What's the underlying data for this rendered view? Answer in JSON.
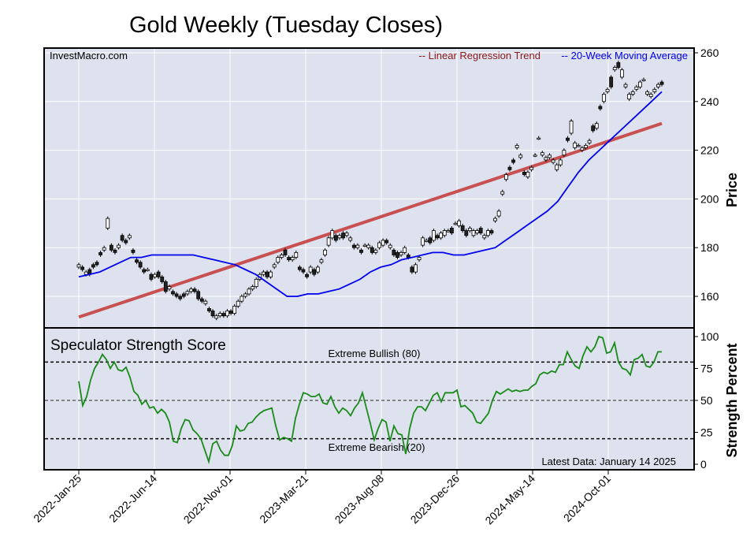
{
  "chart_data": [
    {
      "type": "candlestick",
      "title": "Gold Weekly (Tuesday Closes)",
      "source": "InvestMacro.com",
      "ylabel": "Price",
      "ylim": [
        146,
        262
      ],
      "yticks": [
        160,
        180,
        200,
        220,
        240,
        260
      ],
      "legend": [
        {
          "label": "-- Linear Regression Trend",
          "color": "#8b1a1a"
        },
        {
          "label": "-- 20-Week Moving Average",
          "color": "#0000ee"
        }
      ],
      "legend_placement": "top-right",
      "grid": true,
      "x_dates": [
        "2022-Jan-25",
        "2022-Jun-14",
        "2022-Nov-01",
        "2023-Mar-21",
        "2023-Aug-08",
        "2023-Dec-26",
        "2024-May-14",
        "2024-Oct-01"
      ],
      "candles": [
        [
          172,
          173
        ],
        [
          172,
          171
        ],
        [
          169,
          170
        ],
        [
          171,
          169
        ],
        [
          173,
          172
        ],
        [
          174,
          173
        ],
        [
          178,
          177
        ],
        [
          179,
          180
        ],
        [
          188,
          192
        ],
        [
          181,
          179
        ],
        [
          179,
          178
        ],
        [
          180,
          181
        ],
        [
          185,
          183
        ],
        [
          183,
          182
        ],
        [
          184,
          185
        ],
        [
          179,
          178
        ],
        [
          175,
          174
        ],
        [
          174,
          172
        ],
        [
          171,
          170
        ],
        [
          171,
          171
        ],
        [
          169,
          167
        ],
        [
          168,
          169
        ],
        [
          170,
          168
        ],
        [
          168,
          166
        ],
        [
          166,
          162
        ],
        [
          163,
          164
        ],
        [
          162,
          161
        ],
        [
          161,
          160
        ],
        [
          160,
          159
        ],
        [
          161,
          160
        ],
        [
          161,
          162
        ],
        [
          162,
          163
        ],
        [
          163,
          162
        ],
        [
          162,
          159
        ],
        [
          159,
          158
        ],
        [
          157,
          158
        ],
        [
          155,
          154
        ],
        [
          154,
          152
        ],
        [
          151,
          152
        ],
        [
          152,
          153
        ],
        [
          153,
          152
        ],
        [
          152,
          154
        ],
        [
          154,
          153
        ],
        [
          153,
          156
        ],
        [
          156,
          158
        ],
        [
          158,
          160
        ],
        [
          160,
          161
        ],
        [
          161,
          163
        ],
        [
          163,
          164
        ],
        [
          164,
          167
        ],
        [
          167,
          169
        ],
        [
          169,
          170
        ],
        [
          170,
          168
        ],
        [
          168,
          170
        ],
        [
          172,
          173
        ],
        [
          174,
          176
        ],
        [
          176,
          177
        ],
        [
          179,
          177
        ],
        [
          176,
          175
        ],
        [
          175,
          176
        ],
        [
          176,
          178
        ],
        [
          172,
          171
        ],
        [
          171,
          170
        ],
        [
          169,
          168
        ],
        [
          170,
          172
        ],
        [
          171,
          169
        ],
        [
          170,
          172
        ],
        [
          174,
          175
        ],
        [
          177,
          179
        ],
        [
          181,
          184
        ],
        [
          184,
          187
        ],
        [
          185,
          183
        ],
        [
          184,
          185
        ],
        [
          186,
          184
        ],
        [
          185,
          186
        ],
        [
          183,
          184
        ],
        [
          181,
          180
        ],
        [
          180,
          181
        ],
        [
          179,
          178
        ],
        [
          181,
          181
        ],
        [
          180,
          181
        ],
        [
          180,
          178
        ],
        [
          178,
          179
        ],
        [
          180,
          182
        ],
        [
          181,
          183
        ],
        [
          183,
          182
        ],
        [
          180,
          181
        ],
        [
          179,
          177
        ],
        [
          178,
          176
        ],
        [
          177,
          178
        ],
        [
          178,
          180
        ],
        [
          177,
          176
        ],
        [
          172,
          170
        ],
        [
          170,
          173
        ],
        [
          175,
          176
        ],
        [
          181,
          184
        ],
        [
          183,
          183
        ],
        [
          184,
          182
        ],
        [
          183,
          187
        ],
        [
          185,
          184
        ],
        [
          184,
          186
        ],
        [
          185,
          187
        ],
        [
          187,
          187
        ],
        [
          188,
          186
        ],
        [
          190,
          190
        ],
        [
          189,
          191
        ],
        [
          189,
          187
        ],
        [
          187,
          185
        ],
        [
          187,
          188
        ],
        [
          185,
          187
        ],
        [
          186,
          187
        ],
        [
          188,
          186
        ],
        [
          184,
          185
        ],
        [
          185,
          187
        ],
        [
          187,
          186
        ],
        [
          191,
          192
        ],
        [
          193,
          195
        ],
        [
          202,
          203
        ],
        [
          208,
          210
        ],
        [
          213,
          212
        ],
        [
          216,
          215
        ],
        [
          221,
          222
        ],
        [
          217,
          218
        ],
        [
          211,
          210
        ],
        [
          209,
          211
        ],
        [
          212,
          213
        ],
        [
          218,
          218
        ],
        [
          225,
          225
        ],
        [
          218,
          219
        ],
        [
          216,
          217
        ],
        [
          217,
          218
        ],
        [
          215,
          216
        ],
        [
          212,
          214
        ],
        [
          214,
          216
        ],
        [
          218,
          220
        ],
        [
          225,
          224
        ],
        [
          227,
          232
        ],
        [
          221,
          223
        ],
        [
          222,
          222
        ],
        [
          220,
          221
        ],
        [
          221,
          222
        ],
        [
          223,
          224
        ],
        [
          230,
          228
        ],
        [
          229,
          231
        ],
        [
          238,
          237
        ],
        [
          240,
          243
        ],
        [
          244,
          245
        ],
        [
          250,
          246
        ],
        [
          253,
          254
        ],
        [
          256,
          254
        ],
        [
          250,
          253
        ],
        [
          246,
          247
        ],
        [
          241,
          243
        ],
        [
          243,
          244
        ],
        [
          245,
          246
        ],
        [
          246,
          248
        ],
        [
          249,
          249
        ],
        [
          243,
          244
        ],
        [
          242,
          243
        ],
        [
          244,
          245
        ],
        [
          246,
          247
        ],
        [
          248,
          247
        ]
      ],
      "trend_line": {
        "start": 151.5,
        "end": 231
      },
      "moving_average": [
        168,
        169,
        170,
        172,
        174,
        176,
        176,
        177,
        177,
        177,
        177,
        177,
        176,
        175,
        174,
        173,
        171,
        169,
        166,
        163,
        160,
        160,
        161,
        161,
        162,
        163,
        165,
        167,
        170,
        172,
        173,
        175,
        176,
        177,
        178,
        178,
        177,
        177,
        178,
        179,
        180,
        183,
        186,
        189,
        192,
        195,
        199,
        205,
        211,
        216,
        220,
        224,
        228,
        232,
        236,
        240,
        244
      ]
    },
    {
      "type": "line",
      "title": "Speculator Strength Score",
      "ylabel": "Strength Percent",
      "ylim": [
        0,
        100
      ],
      "yticks": [
        0,
        25,
        50,
        75,
        100
      ],
      "annotation_note": "Latest Data: January 14 2025",
      "thresholds": [
        {
          "value": 80,
          "label": "Extreme Bullish (80)"
        },
        {
          "value": 50,
          "label": "50"
        },
        {
          "value": 20,
          "label": "Extreme Bearish (20)"
        }
      ],
      "values": [
        65,
        46,
        53,
        66,
        75,
        80,
        86,
        82,
        75,
        80,
        74,
        73,
        76,
        68,
        57,
        54,
        47,
        50,
        44,
        45,
        40,
        43,
        40,
        33,
        18,
        17,
        28,
        35,
        34,
        27,
        24,
        20,
        11,
        2,
        16,
        18,
        11,
        7,
        7,
        15,
        30,
        26,
        27,
        32,
        33,
        37,
        40,
        42,
        43,
        44,
        30,
        19,
        21,
        20,
        18,
        36,
        47,
        56,
        55,
        53,
        53,
        55,
        48,
        47,
        53,
        45,
        40,
        44,
        42,
        38,
        44,
        48,
        56,
        44,
        32,
        19,
        28,
        35,
        33,
        18,
        30,
        24,
        23,
        8,
        28,
        40,
        45,
        45,
        42,
        48,
        54,
        56,
        49,
        56,
        56,
        56,
        58,
        45,
        46,
        43,
        40,
        33,
        32,
        36,
        40,
        50,
        57,
        55,
        57,
        59,
        57,
        58,
        57,
        58,
        58,
        61,
        63,
        70,
        72,
        71,
        73,
        72,
        78,
        78,
        88,
        82,
        77,
        75,
        85,
        92,
        88,
        92,
        100,
        99,
        87,
        88,
        95,
        80,
        75,
        74,
        70,
        82,
        83,
        86,
        77,
        76,
        80,
        88,
        88
      ]
    }
  ]
}
